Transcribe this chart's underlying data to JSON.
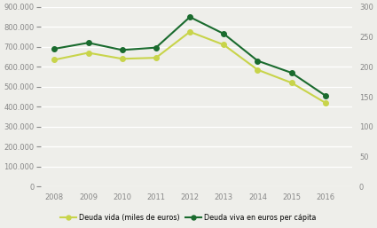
{
  "years": [
    2008,
    2009,
    2010,
    2011,
    2012,
    2013,
    2014,
    2015,
    2016
  ],
  "deuda_vida": [
    635000,
    670000,
    640000,
    645000,
    775000,
    710000,
    585000,
    520000,
    420000
  ],
  "deuda_per_capita": [
    230,
    240,
    228,
    232,
    283,
    255,
    210,
    190,
    152
  ],
  "color_vida": "#c8d44a",
  "color_per_capita": "#1a6b2e",
  "left_ylim": [
    0,
    900000
  ],
  "right_ylim": [
    0,
    300
  ],
  "left_yticks": [
    0,
    100000,
    200000,
    300000,
    400000,
    500000,
    600000,
    700000,
    800000,
    900000
  ],
  "right_yticks": [
    0,
    50,
    100,
    150,
    200,
    250,
    300
  ],
  "legend_vida": "Deuda vida (miles de euros)",
  "legend_per_capita": "Deuda viva en euros per cápita",
  "bg_color": "#eeeeea",
  "grid_color": "#ffffff",
  "tick_color": "#888888",
  "marker": "o",
  "linewidth": 1.5,
  "markersize": 4,
  "tick_fontsize": 6,
  "legend_fontsize": 5.8
}
